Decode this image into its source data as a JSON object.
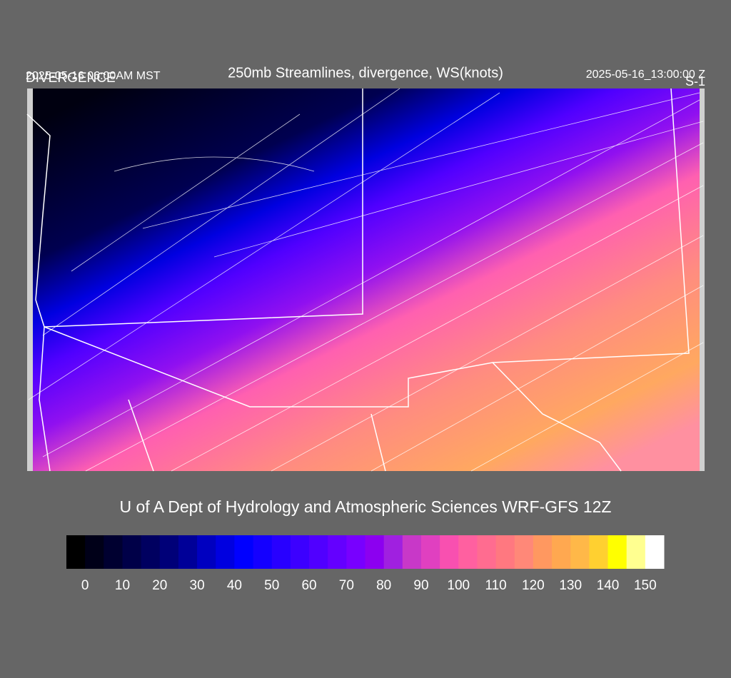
{
  "header": {
    "title": "250mb Streamlines, divergence, WS(knots)",
    "local_time": "2025-05-16 06:00AM MST",
    "field": "DIVERGENCE",
    "valid_time": "2025-05-16_13:00:00 Z",
    "level": "S-1"
  },
  "credit": "U of A Dept of Hydrology and Atmospheric Sciences WRF-GFS 12Z",
  "colorbar": {
    "range": [
      -5,
      155
    ],
    "ticks": [
      0,
      10,
      20,
      30,
      40,
      50,
      60,
      70,
      80,
      90,
      100,
      110,
      120,
      130,
      140,
      150
    ],
    "colors": [
      "#000000",
      "#000018",
      "#000030",
      "#000048",
      "#000060",
      "#000078",
      "#000098",
      "#0000c0",
      "#0000e0",
      "#0000ff",
      "#1400ff",
      "#2800ff",
      "#3c00ff",
      "#5000ff",
      "#6400ff",
      "#7800ff",
      "#8c00f0",
      "#a020e0",
      "#c838c8",
      "#e040c0",
      "#f850b0",
      "#ff60a0",
      "#ff6c90",
      "#ff7880",
      "#ff8878",
      "#ff9860",
      "#ffa850",
      "#ffb848",
      "#ffd030",
      "#ffff00",
      "#ffff90",
      "#ffffff"
    ]
  }
}
